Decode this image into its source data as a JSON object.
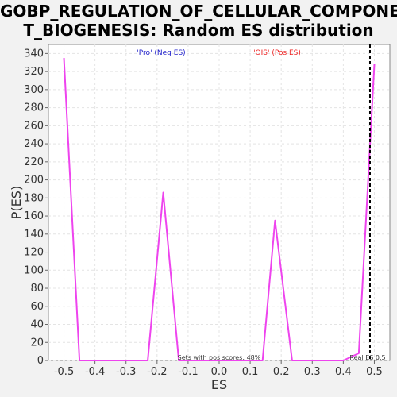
{
  "chart_data": {
    "type": "line",
    "title_lines": [
      "GOBP_REGULATION_OF_CELLULAR_COMPONEN",
      "T_BIOGENESIS: Random ES distribution"
    ],
    "xlabel": "ES",
    "ylabel": "P(ES)",
    "xlim": [
      -0.55,
      0.55
    ],
    "ylim": [
      0,
      350
    ],
    "xticks": [
      -0.5,
      -0.4,
      -0.3,
      -0.2,
      -0.1,
      0.0,
      0.1,
      0.2,
      0.3,
      0.4,
      0.5
    ],
    "xtick_labels": [
      "-0.5",
      "-0.4",
      "-0.3",
      "-0.2",
      "-0.1",
      "0.0",
      "0.1",
      "0.2",
      "0.3",
      "0.4",
      "0.5"
    ],
    "yticks": [
      0,
      20,
      40,
      60,
      80,
      100,
      120,
      140,
      160,
      180,
      200,
      220,
      240,
      260,
      280,
      300,
      320,
      340
    ],
    "grid": true,
    "series": [
      {
        "color": "#ee44ee",
        "x": [
          -0.5,
          -0.45,
          -0.4,
          -0.35,
          -0.3,
          -0.25,
          -0.23,
          -0.18,
          -0.13,
          -0.08,
          0.0,
          0.05,
          0.1,
          0.14,
          0.18,
          0.235,
          0.3,
          0.35,
          0.4,
          0.45,
          0.5
        ],
        "y": [
          335,
          0,
          0,
          0,
          0,
          0,
          0,
          186,
          0,
          0,
          0,
          0,
          0,
          0,
          155,
          0,
          0,
          0,
          0,
          8,
          328
        ]
      }
    ],
    "real_es": 0.486,
    "real_es_color": "#000000",
    "legend": {
      "neg_label": "'Pro' (Neg ES)",
      "neg_color": "#2222cc",
      "pos_label": "'OIS' (Pos ES)",
      "pos_color": "#ee2222"
    },
    "annotations": {
      "sets_label": "Sets with pos scores: 48%",
      "real_es_label": "Real ES 0.5"
    }
  }
}
